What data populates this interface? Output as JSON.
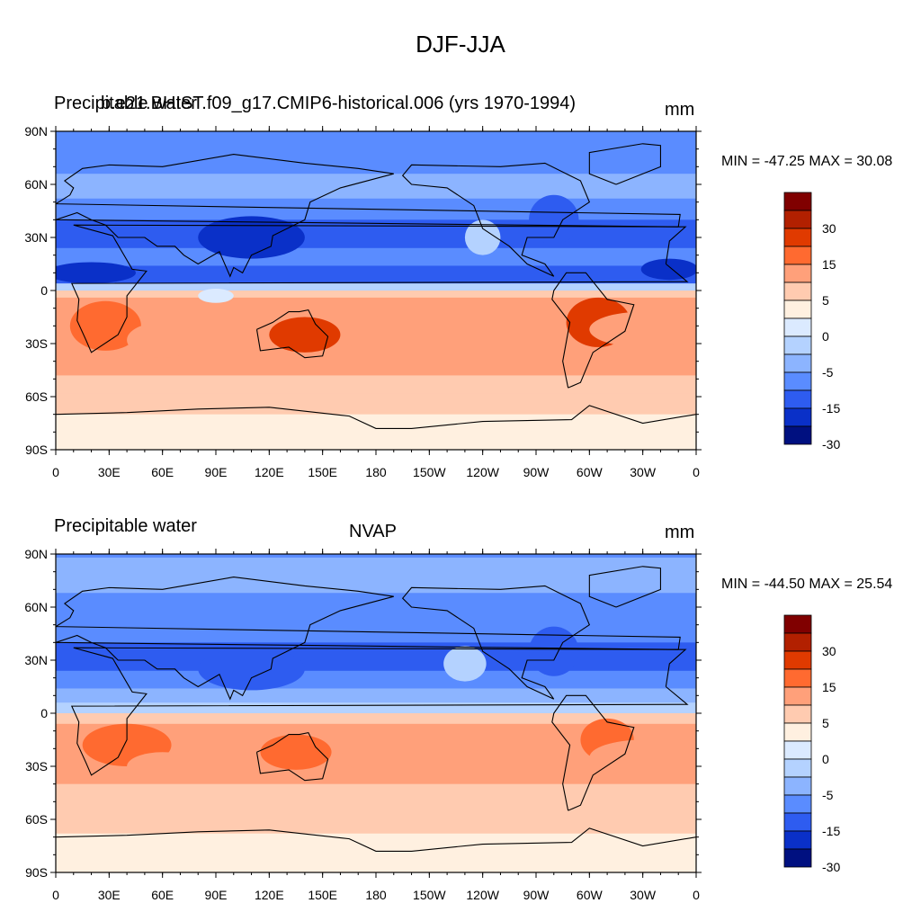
{
  "figure": {
    "title": "DJF-JJA"
  },
  "panels": [
    {
      "left_title": "Precipitable water",
      "center_title": "b.e21.BHIST.f09_g17.CMIP6-historical.006 (yrs 1970-1994)",
      "units": "mm",
      "minmax": "MIN = -47.25 MAX =  30.08"
    },
    {
      "left_title": "Precipitable water",
      "center_title": "NVAP",
      "units": "mm",
      "minmax": "MIN = -44.50 MAX =  25.54"
    }
  ],
  "map": {
    "projection": "cylindrical equidistant, 0-360 longitude",
    "lat_ticks": [
      "90N",
      "60N",
      "30N",
      "0",
      "30S",
      "60S",
      "90S"
    ],
    "lon_ticks": [
      "0",
      "30E",
      "60E",
      "90E",
      "120E",
      "150E",
      "180",
      "150W",
      "120W",
      "90W",
      "60W",
      "30W",
      "0"
    ],
    "coastlines": "black"
  },
  "colorbar": {
    "labels": [
      "30",
      "15",
      "5",
      "0",
      "-5",
      "-15",
      "-30"
    ],
    "colors": [
      "#800000",
      "#b22000",
      "#e03a00",
      "#ff6a30",
      "#ffa07a",
      "#ffcbb0",
      "#fff0e0",
      "#dbeaff",
      "#b4d2ff",
      "#8cb4ff",
      "#5a8cff",
      "#2e5cf0",
      "#0a30c8",
      "#001080"
    ]
  }
}
